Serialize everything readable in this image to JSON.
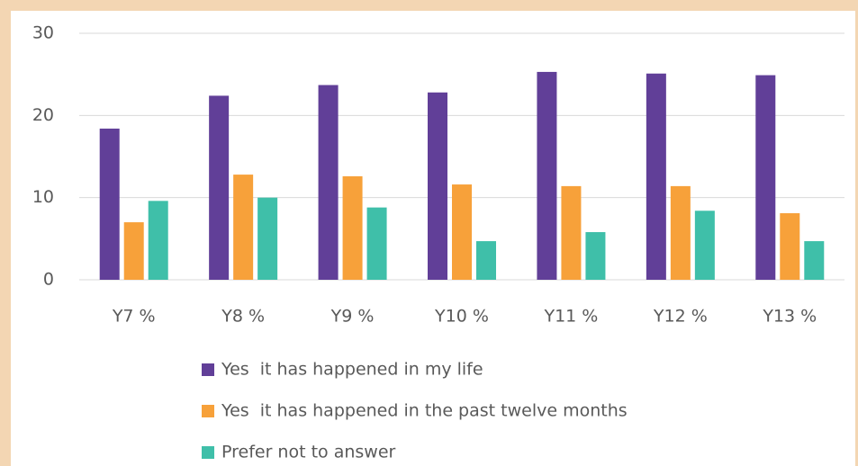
{
  "chart_data": {
    "type": "bar",
    "categories": [
      "Y7 %",
      "Y8 %",
      "Y9 %",
      "Y10 %",
      "Y11 %",
      "Y12 %",
      "Y13 %"
    ],
    "series": [
      {
        "name": "Yes  it has happened in my life",
        "color": "#613f98",
        "values": [
          18.4,
          22.4,
          23.7,
          22.8,
          25.3,
          25.1,
          24.9
        ]
      },
      {
        "name": "Yes  it has happened in the past twelve months",
        "color": "#f7a13a",
        "values": [
          7.0,
          12.8,
          12.6,
          11.6,
          11.4,
          11.4,
          8.1
        ]
      },
      {
        "name": "Prefer not to answer",
        "color": "#3fbfa9",
        "values": [
          9.6,
          10.0,
          8.8,
          4.7,
          5.8,
          8.4,
          4.7
        ]
      }
    ],
    "ylim": [
      0,
      30
    ],
    "yticks": [
      0,
      10,
      20,
      30
    ],
    "grid": true,
    "legend": "bottom"
  }
}
